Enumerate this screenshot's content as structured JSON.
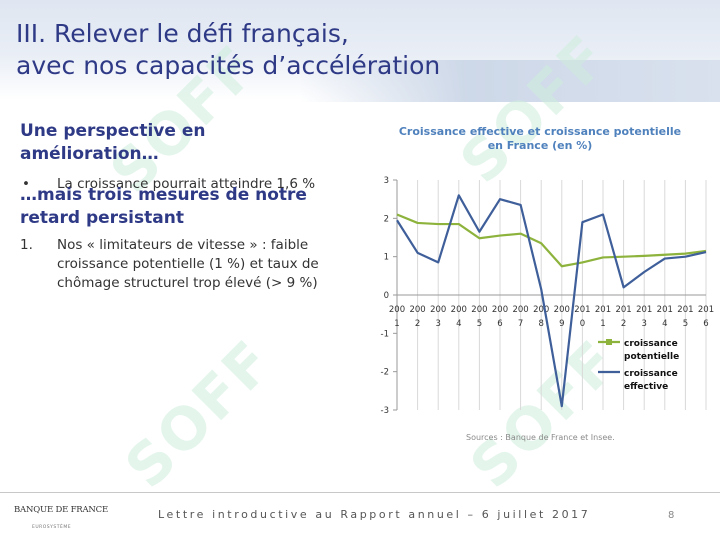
{
  "slide": {
    "title_line1": "III. Relever le défi français,",
    "title_line2": "avec nos capacités d’accélération",
    "section1_heading_line1": "Une perspective en",
    "section1_heading_line2": "amélioration…",
    "bullet_marker": "•",
    "bullet1": "La croissance pourrait atteindre 1,6 %",
    "section2_heading_line1": "…mais trois mesures de notre",
    "section2_heading_line2": "retard persistant",
    "item1_number": "1.",
    "item1_text": "Nos « limitateurs de vitesse » : faible croissance potentielle (1 %) et taux de chômage structurel trop élevé (> 9 %)",
    "watermark_text": "SOFF"
  },
  "footer": {
    "text": "Lettre introductive au Rapport annuel – 6 juillet 2017",
    "page_number": "8",
    "logo_text": "BANQUE DE FRANCE",
    "logo_subtext": "EUROSYSTÈME"
  },
  "colors": {
    "title": "#2f3a86",
    "potential": "#8db33d",
    "effective": "#3f5f9a",
    "chart_title": "#4f81bd"
  },
  "chart_data": {
    "type": "line",
    "title_line1": "Croissance effective et croissance potentielle",
    "title_line2": "en France (en %)",
    "source": "Sources : Banque de France et Insee.",
    "x": [
      2001,
      2002,
      2003,
      2004,
      2005,
      2006,
      2007,
      2008,
      2009,
      2010,
      2011,
      2012,
      2013,
      2014,
      2015,
      2016
    ],
    "x_tick_top": [
      "200",
      "200",
      "200",
      "200",
      "200",
      "200",
      "200",
      "200",
      "200",
      "201",
      "201",
      "201",
      "201",
      "201",
      "201",
      "201"
    ],
    "x_tick_bottom": [
      "1",
      "2",
      "3",
      "4",
      "5",
      "6",
      "7",
      "8",
      "9",
      "0",
      "1",
      "2",
      "3",
      "4",
      "5",
      "6"
    ],
    "ylim": [
      -3,
      3
    ],
    "y_ticks": [
      "3",
      "2",
      "1",
      "0",
      "-1",
      "-2",
      "-3"
    ],
    "legend_position": "right, below the x-axis",
    "series": [
      {
        "name": "croissance potentielle",
        "name_line1": "croissance",
        "name_line2": "potentielle",
        "color": "#8db33d",
        "values": [
          2.1,
          1.88,
          1.85,
          1.85,
          1.48,
          1.55,
          1.6,
          1.35,
          0.75,
          0.85,
          0.98,
          1.0,
          1.02,
          1.05,
          1.08,
          1.15
        ]
      },
      {
        "name": "croissance effective",
        "name_line1": "croissance",
        "name_line2": "effective",
        "color": "#3f5f9a",
        "values": [
          1.95,
          1.1,
          0.85,
          2.6,
          1.65,
          2.5,
          2.35,
          0.15,
          -2.9,
          1.9,
          2.1,
          0.2,
          0.6,
          0.95,
          1.0,
          1.12
        ]
      }
    ]
  }
}
